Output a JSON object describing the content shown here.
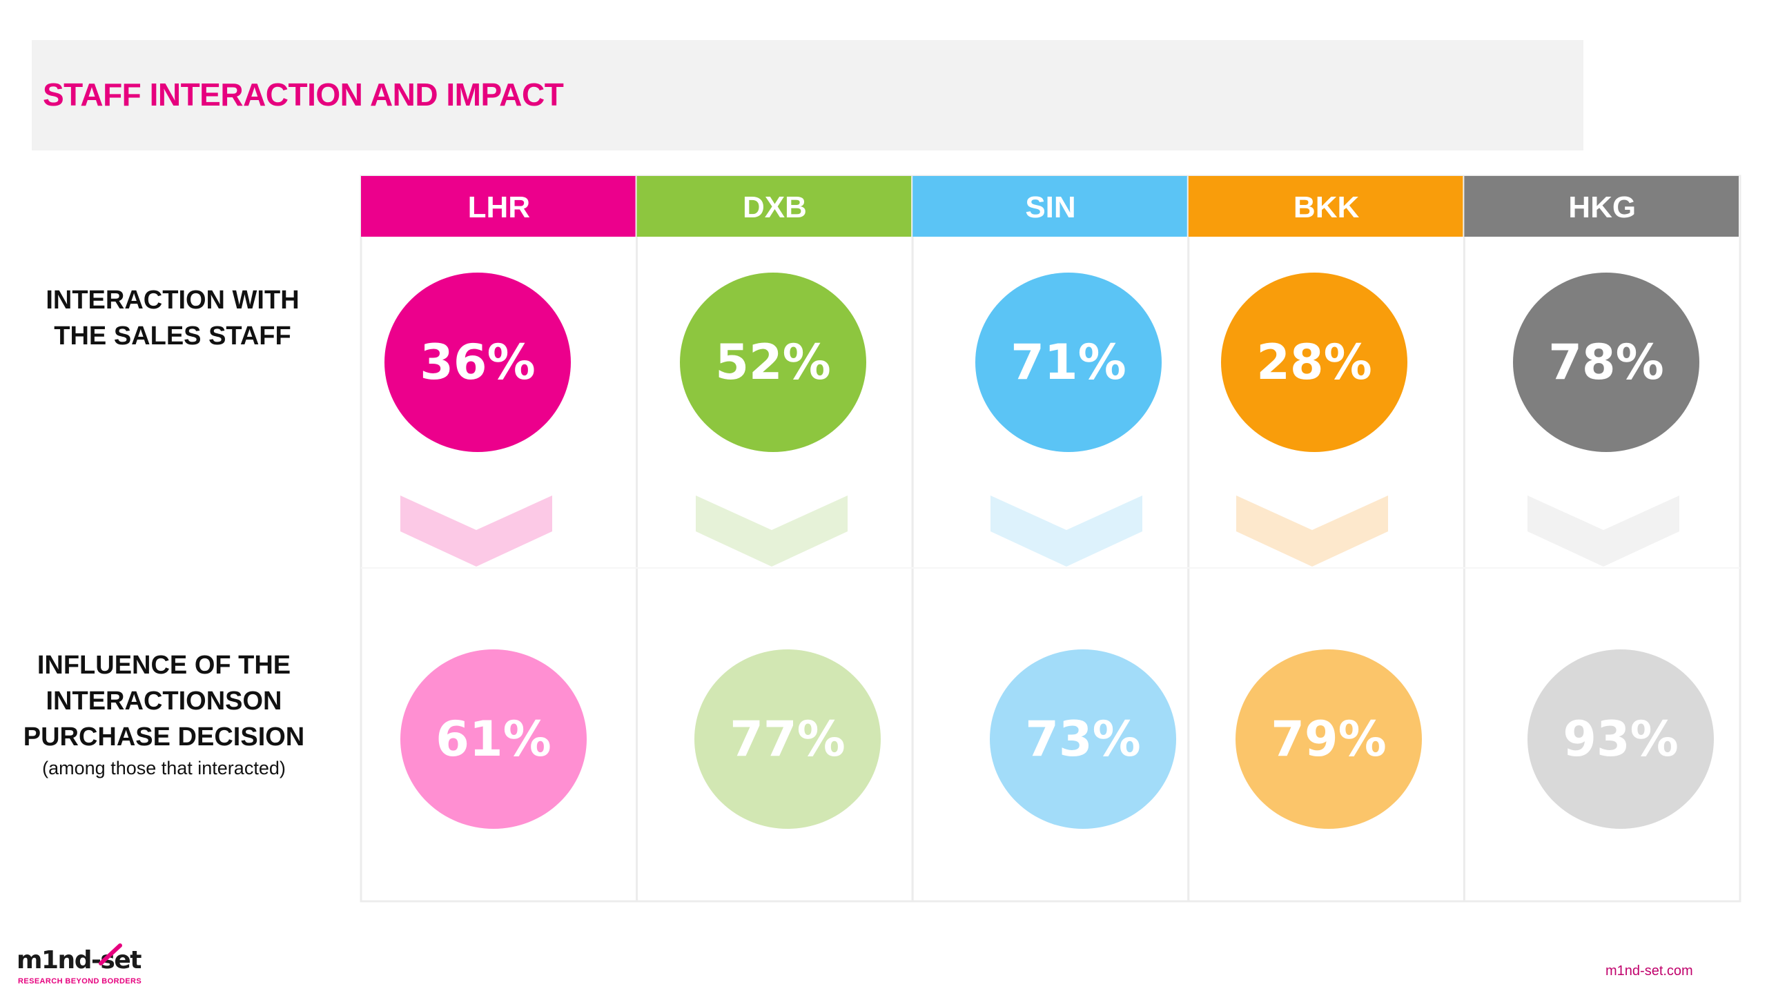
{
  "title": "STAFF INTERACTION AND IMPACT",
  "row_labels": {
    "interaction": {
      "line1": "INTERACTION WITH",
      "line2": "THE SALES STAFF"
    },
    "influence": {
      "line1": "INFLUENCE  OF THE",
      "line2": "INTERACTIONSON",
      "line3": "PURCHASE DECISION",
      "note": "(among those that interacted)"
    }
  },
  "chart_data": {
    "type": "table",
    "title": "STAFF INTERACTION AND IMPACT",
    "categories": [
      "LHR",
      "DXB",
      "SIN",
      "BKK",
      "HKG"
    ],
    "series": [
      {
        "name": "INTERACTION WITH THE SALES STAFF",
        "values": [
          36,
          52,
          71,
          28,
          78
        ]
      },
      {
        "name": "INFLUENCE OF THE INTERACTIONSON PURCHASE DECISION",
        "values": [
          61,
          77,
          73,
          79,
          93
        ]
      }
    ],
    "value_suffix": "%",
    "colors": {
      "primary": [
        "#ec008c",
        "#8dc63f",
        "#5bc4f5",
        "#f99d0b",
        "#7f7f7f"
      ],
      "secondary": [
        "#ff8fd2",
        "#d2e7b3",
        "#a2dcf9",
        "#fbc56a",
        "#d9d9d9"
      ],
      "chevron": [
        "#fcc9e6",
        "#e6f2d8",
        "#ddf2fc",
        "#fde8cc",
        "#f2f2f2"
      ]
    }
  },
  "footer": {
    "logo_text": "m1nd-set",
    "logo_tagline": "RESEARCH BEYOND BORDERS",
    "site": "m1nd-set.com"
  }
}
